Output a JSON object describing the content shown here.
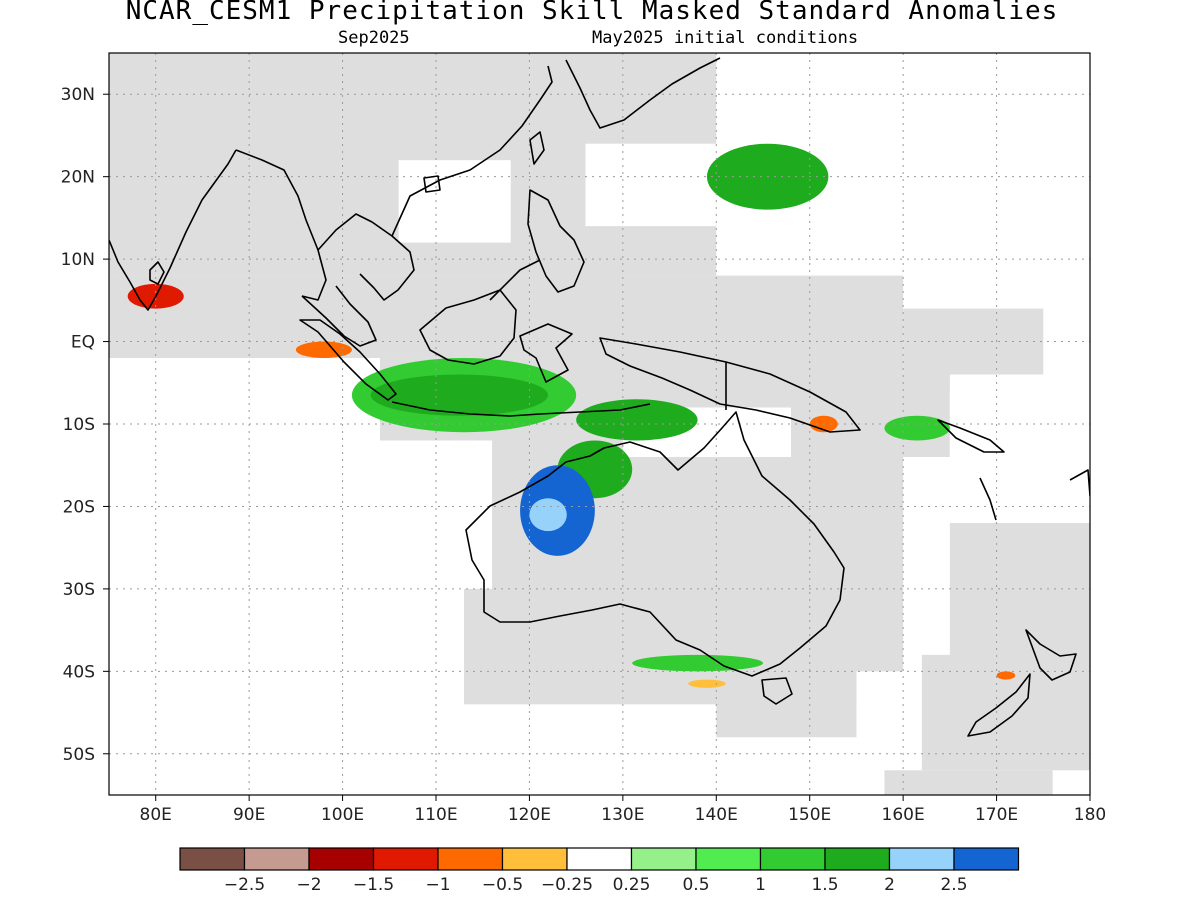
{
  "header": {
    "title": "NCAR_CESM1 Precipitation Skill Masked Standard Anomalies",
    "target_month": "Sep2025",
    "init_conditions": "May2025 initial conditions"
  },
  "map": {
    "lon_range": [
      75,
      180
    ],
    "lat_range": [
      -55,
      35
    ],
    "lat_labels": [
      "30N",
      "20N",
      "10N",
      "EQ",
      "10S",
      "20S",
      "30S",
      "40S",
      "50S"
    ],
    "lon_labels": [
      "80E",
      "90E",
      "100E",
      "110E",
      "120E",
      "130E",
      "140E",
      "150E",
      "160E",
      "170E",
      "180"
    ],
    "colors": {
      "mask_gray": "#dedede",
      "coastline": "#000000",
      "grid": "#9a9a9a"
    },
    "anomaly_regions": [
      {
        "name": "sri-lanka-dry",
        "lon": [
          77,
          83
        ],
        "lat": [
          4,
          7
        ],
        "level": -1.5
      },
      {
        "name": "sumatra-west-dry",
        "lon": [
          95,
          101
        ],
        "lat": [
          -2,
          0
        ],
        "level": -1
      },
      {
        "name": "java-sea-wet",
        "lon": [
          101,
          125
        ],
        "lat": [
          -11,
          -2
        ],
        "level": 1
      },
      {
        "name": "java-sea-core",
        "lon": [
          103,
          122
        ],
        "lat": [
          -9,
          -4
        ],
        "level": 1.5
      },
      {
        "name": "timor-wet",
        "lon": [
          125,
          138
        ],
        "lat": [
          -12,
          -7
        ],
        "level": 1.5
      },
      {
        "name": "kimberley-wet",
        "lon": [
          123,
          131
        ],
        "lat": [
          -19,
          -12
        ],
        "level": 1.5
      },
      {
        "name": "nw-australia-very-wet",
        "lon": [
          119,
          127
        ],
        "lat": [
          -26,
          -15
        ],
        "level": 2.5
      },
      {
        "name": "nw-australia-core",
        "lon": [
          120,
          124
        ],
        "lat": [
          -23,
          -19
        ],
        "level": 2
      },
      {
        "name": "japan-south-wet",
        "lon": [
          139,
          152
        ],
        "lat": [
          16,
          24
        ],
        "level": 1.5
      },
      {
        "name": "solomon-wet",
        "lon": [
          158,
          165
        ],
        "lat": [
          -12,
          -9
        ],
        "level": 1
      },
      {
        "name": "bass-strait-wet",
        "lon": [
          131,
          145
        ],
        "lat": [
          -40,
          -38
        ],
        "level": 1
      },
      {
        "name": "gab-dry",
        "lon": [
          137,
          141
        ],
        "lat": [
          -42,
          -41
        ],
        "level": -0.5
      },
      {
        "name": "png-dry",
        "lon": [
          150,
          153
        ],
        "lat": [
          -11,
          -9
        ],
        "level": -1
      },
      {
        "name": "nz-dry",
        "lon": [
          170,
          172
        ],
        "lat": [
          -41,
          -40
        ],
        "level": -1
      }
    ]
  },
  "colorbar": {
    "colors": [
      "#7a4f45",
      "#c59a90",
      "#a60000",
      "#df1a00",
      "#ff6a00",
      "#ffbf3a",
      "#ffffff",
      "#95f08a",
      "#50ec50",
      "#32cc32",
      "#1eac1e",
      "#96d2fa",
      "#1464d2"
    ],
    "labels": [
      "−2.5",
      "−2",
      "−1.5",
      "−1",
      "−0.5",
      "−0.25",
      "0.25",
      "0.5",
      "1",
      "1.5",
      "2",
      "2.5"
    ]
  }
}
